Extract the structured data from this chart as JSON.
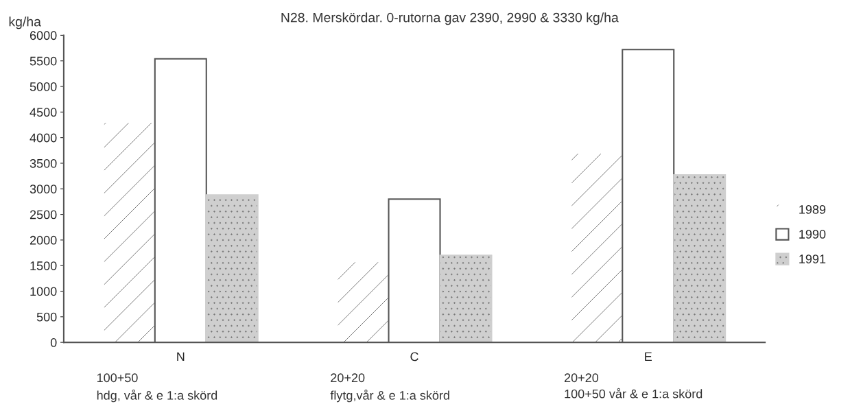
{
  "chart_data": {
    "type": "bar",
    "title": "N28. Merskördar. 0-rutorna gav 2390, 2990 & 3330 kg/ha",
    "ylabel": "kg/ha",
    "categories": [
      "N",
      "C",
      "E"
    ],
    "series": [
      {
        "name": "1989",
        "color": "#ffffff",
        "values": [
          4300,
          1580,
          3700
        ]
      },
      {
        "name": "1990",
        "color": "#ffffff",
        "values": [
          5540,
          2800,
          5720
        ]
      },
      {
        "name": "1991",
        "color": "#cfcfcf",
        "values": [
          2880,
          1700,
          3270
        ]
      }
    ],
    "annotations": [
      "100+50\nhdg, vår & e 1:a skörd",
      "20+20\nflytg,vår & e 1:a skörd",
      "20+20\n100+50 vår & e 1:a skörd"
    ],
    "ylim": [
      0,
      6000
    ],
    "yticks": [
      0,
      500,
      1000,
      1500,
      2000,
      2500,
      3000,
      3500,
      4000,
      4500,
      5000,
      5500,
      6000
    ],
    "grid": false,
    "legend": "right"
  }
}
